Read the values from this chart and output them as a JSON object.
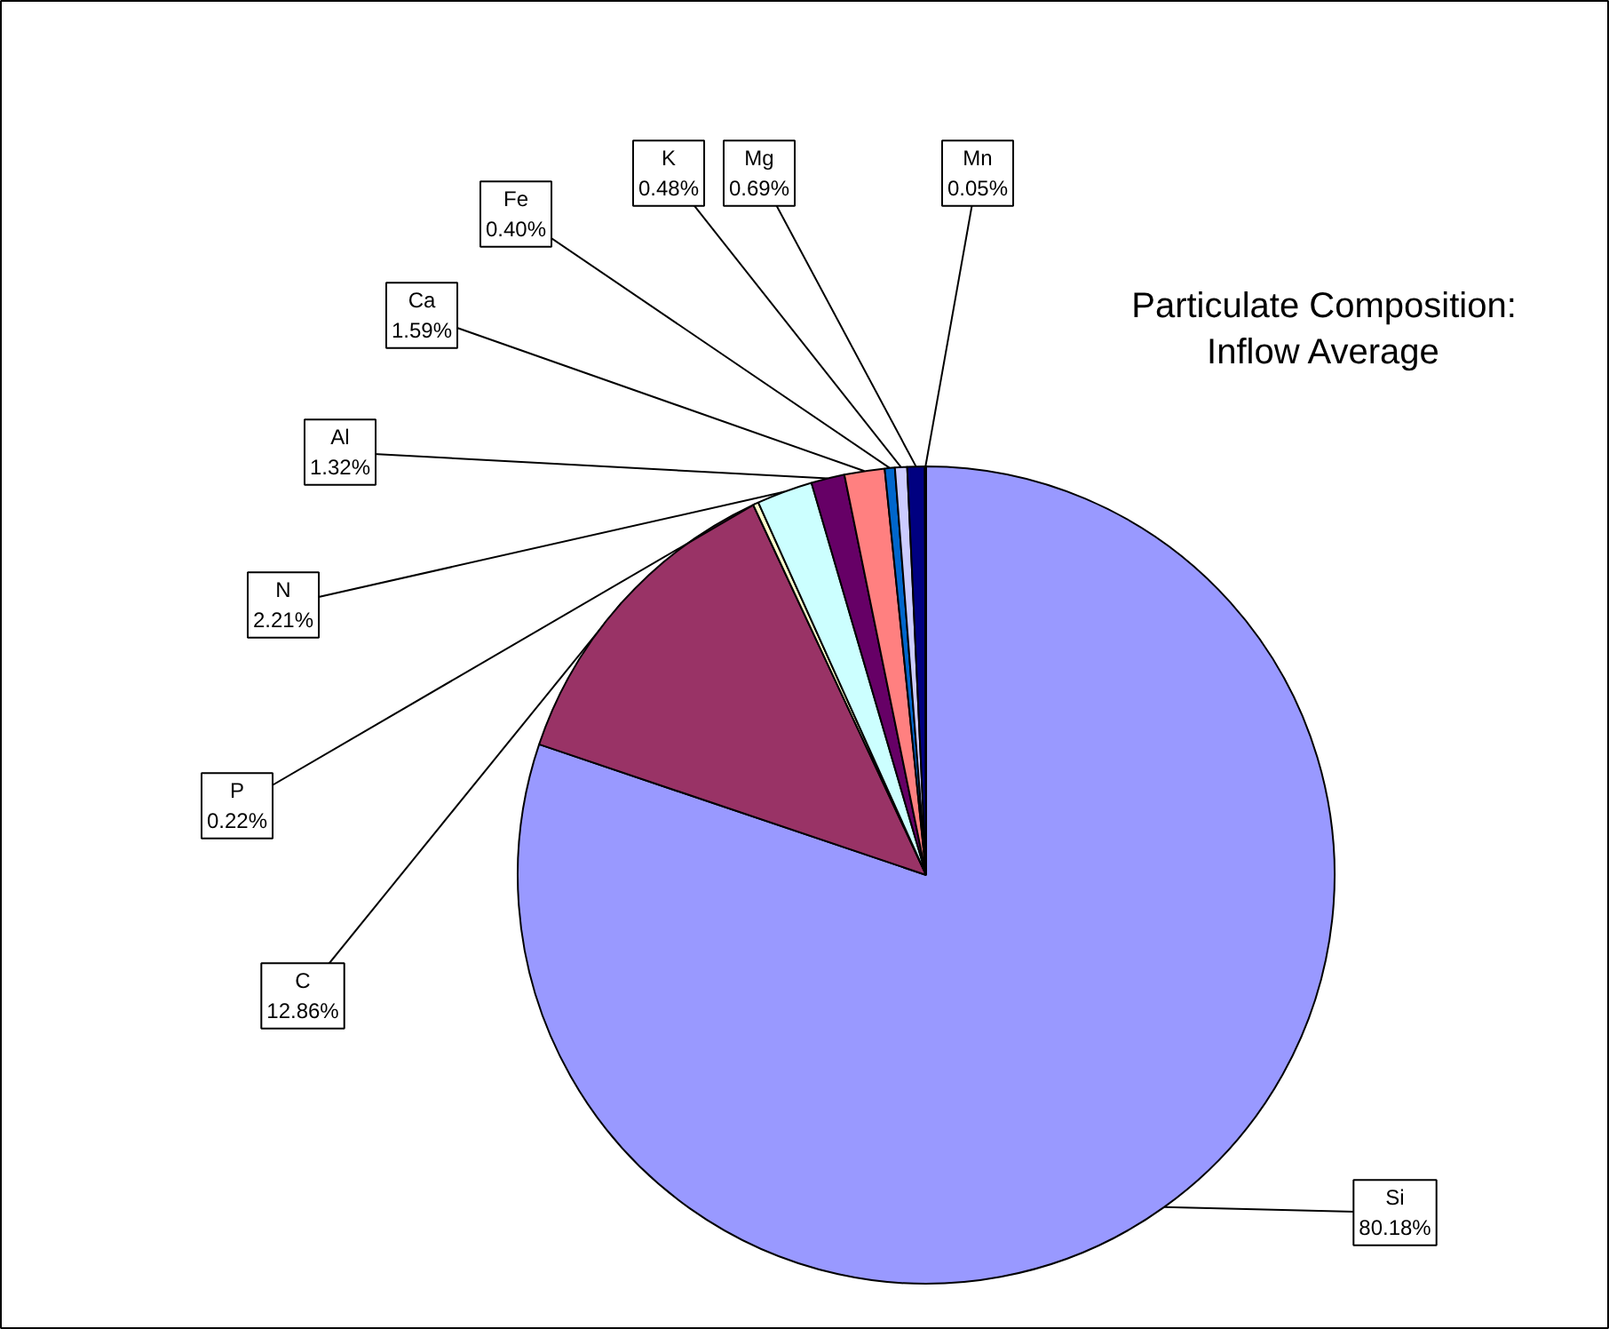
{
  "chart_data": {
    "type": "pie",
    "title": "Particulate Composition: Inflow Average",
    "categories": [
      "Si",
      "C",
      "P",
      "N",
      "Al",
      "Ca",
      "Fe",
      "K",
      "Mg",
      "Mn"
    ],
    "values": [
      80.18,
      12.86,
      0.22,
      2.21,
      1.32,
      1.59,
      0.4,
      0.48,
      0.69,
      0.05
    ],
    "colors": [
      "#9999ff",
      "#993366",
      "#ffffcc",
      "#ccffff",
      "#660066",
      "#ff8080",
      "#0066cc",
      "#ccccff",
      "#000080",
      "#ff00ff"
    ],
    "value_labels": [
      "80.18%",
      "12.86%",
      "0.22%",
      "2.21%",
      "1.32%",
      "1.59%",
      "0.40%",
      "0.48%",
      "0.69%",
      "0.05%"
    ]
  }
}
